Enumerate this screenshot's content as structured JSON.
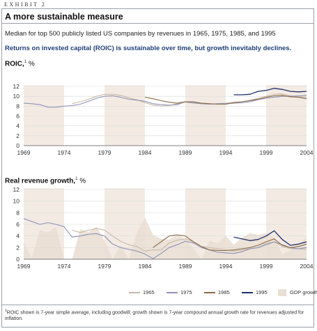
{
  "header": {
    "exhibit": "EXHIBIT 2",
    "title": "A more sustainable measure",
    "subtitle": "Median for top 500 publicly listed US companies by revenues in 1965, 1975, 1985, and 1995",
    "headline": "Returns on invested capital (ROIC) is sustainable over time, but growth inevitably declines."
  },
  "colors": {
    "s1965": "#c9b8a8",
    "s1975": "#8e92b8",
    "s1985": "#8a6a46",
    "s1995": "#1e2f6a",
    "gdp": "#eadfd3",
    "band": "#f3ebe3",
    "grid": "#d9d9d9"
  },
  "legend": {
    "items": [
      {
        "key": "s1965",
        "label": "1965",
        "kind": "line"
      },
      {
        "key": "s1975",
        "label": "1975",
        "kind": "line"
      },
      {
        "key": "s1985",
        "label": "1985",
        "kind": "line"
      },
      {
        "key": "s1995",
        "label": "1995",
        "kind": "line"
      },
      {
        "key": "gdp",
        "label": "GDP growth",
        "kind": "area"
      }
    ]
  },
  "footnote": {
    "mark": "1",
    "text": "ROIC shown is 7-year simple average, including goodwill; growth shown is 7-year compound annual growth rate for revenues adjusted for inflation."
  },
  "chart_data": [
    {
      "type": "line",
      "title": "ROIC,",
      "title_mark": "1",
      "unit": "%",
      "xlim": [
        1969,
        2004
      ],
      "ylim": [
        0,
        12
      ],
      "yticks": [
        0,
        2,
        4,
        6,
        8,
        10,
        12
      ],
      "xticks": [
        1969,
        1974,
        1979,
        1984,
        1989,
        1994,
        1999,
        2004
      ],
      "shaded_bands": [
        [
          1969,
          1974
        ],
        [
          1979,
          1984
        ],
        [
          1989,
          1994
        ],
        [
          1999,
          2004
        ]
      ],
      "series": [
        {
          "key": "s1965",
          "x": [
            1975,
            1976,
            1977,
            1978,
            1979,
            1980,
            1981,
            1982,
            1983,
            1984,
            1985,
            1986,
            1987,
            1988,
            1989,
            1990,
            1991,
            1992,
            1993,
            1994,
            1995,
            1996,
            1997,
            1998,
            1999,
            2000,
            2001,
            2002,
            2003,
            2004
          ],
          "y": [
            8.5,
            8.9,
            9.4,
            10.0,
            10.4,
            10.4,
            10.2,
            9.7,
            9.3,
            8.7,
            8.2,
            8.0,
            8.1,
            8.5,
            8.8,
            8.6,
            8.5,
            8.4,
            8.5,
            8.6,
            8.8,
            8.9,
            9.2,
            9.6,
            10.0,
            10.4,
            10.5,
            10.1,
            9.9,
            9.8
          ]
        },
        {
          "key": "s1975",
          "x": [
            1969,
            1970,
            1971,
            1972,
            1973,
            1974,
            1975,
            1976,
            1977,
            1978,
            1979,
            1980,
            1981,
            1982,
            1983,
            1984,
            1985,
            1986,
            1987,
            1988,
            1989,
            1990,
            1991,
            1992,
            1993,
            1994,
            1995,
            1996,
            1997,
            1998,
            1999,
            2000,
            2001,
            2002,
            2003,
            2004
          ],
          "y": [
            8.6,
            8.5,
            8.3,
            7.8,
            7.8,
            8.0,
            8.1,
            8.4,
            9.0,
            9.6,
            10.0,
            10.1,
            9.8,
            9.4,
            9.2,
            9.0,
            8.5,
            8.3,
            8.2,
            8.3,
            8.9,
            8.7,
            8.5,
            8.4,
            8.5,
            8.5,
            8.6,
            8.7,
            8.9,
            9.3,
            9.6,
            9.8,
            10.0,
            10.0,
            10.1,
            10.2
          ]
        },
        {
          "key": "s1985",
          "x": [
            1984,
            1985,
            1986,
            1987,
            1988,
            1989,
            1990,
            1991,
            1992,
            1993,
            1994,
            1995,
            1996,
            1997,
            1998,
            1999,
            2000,
            2001,
            2002,
            2003,
            2004
          ],
          "y": [
            9.8,
            9.5,
            9.1,
            8.8,
            8.6,
            8.9,
            8.9,
            8.6,
            8.5,
            8.4,
            8.4,
            8.7,
            8.9,
            9.1,
            9.4,
            9.8,
            10.1,
            10.2,
            9.9,
            9.8,
            9.5
          ]
        },
        {
          "key": "s1995",
          "x": [
            1995,
            1996,
            1997,
            1998,
            1999,
            2000,
            2001,
            2002,
            2003,
            2004
          ],
          "y": [
            10.3,
            10.3,
            10.4,
            11.0,
            11.2,
            11.6,
            11.4,
            11.0,
            10.9,
            11.0
          ]
        }
      ]
    },
    {
      "type": "line",
      "title": "Real revenue growth,",
      "title_mark": "1",
      "unit": "%",
      "xlim": [
        1969,
        2004
      ],
      "ylim": [
        0,
        12
      ],
      "yticks": [
        0,
        2,
        4,
        6,
        8,
        10,
        12
      ],
      "xticks": [
        1969,
        1974,
        1979,
        1984,
        1989,
        1994,
        1999,
        2004
      ],
      "shaded_bands": [
        [
          1969,
          1974
        ],
        [
          1979,
          1984
        ],
        [
          1989,
          1994
        ],
        [
          1999,
          2004
        ]
      ],
      "gdp_growth": {
        "key": "gdp",
        "x": [
          1969,
          1970,
          1971,
          1972,
          1973,
          1974,
          1975,
          1976,
          1977,
          1978,
          1979,
          1980,
          1981,
          1982,
          1983,
          1984,
          1985,
          1986,
          1987,
          1988,
          1989,
          1990,
          1991,
          1992,
          1993,
          1994,
          1995,
          1996,
          1997,
          1998,
          1999,
          2000,
          2001,
          2002,
          2003,
          2004
        ],
        "y": [
          3.0,
          0.2,
          5.0,
          4.6,
          5.6,
          0.0,
          0.0,
          5.2,
          4.6,
          5.6,
          3.2,
          0.0,
          2.5,
          0.0,
          4.6,
          7.2,
          4.2,
          3.5,
          3.4,
          4.2,
          3.5,
          1.9,
          0.0,
          3.3,
          2.7,
          4.0,
          2.5,
          3.7,
          4.5,
          4.2,
          4.5,
          3.7,
          0.8,
          1.6,
          2.5,
          3.9
        ]
      },
      "series": [
        {
          "key": "s1965",
          "x": [
            1975,
            1976,
            1977,
            1978,
            1979,
            1980,
            1981,
            1982,
            1983,
            1984,
            1985,
            1986,
            1987,
            1988,
            1989,
            1990,
            1991,
            1992,
            1993,
            1994,
            1995,
            1996,
            1997,
            1998,
            1999,
            2000,
            2001,
            2002,
            2003,
            2004
          ],
          "y": [
            5.0,
            4.6,
            5.0,
            5.3,
            5.0,
            4.0,
            3.1,
            2.5,
            2.2,
            1.4,
            1.6,
            1.6,
            2.8,
            3.3,
            3.5,
            3.0,
            2.2,
            2.0,
            1.8,
            1.6,
            1.4,
            1.6,
            1.8,
            2.0,
            2.7,
            3.0,
            2.2,
            1.8,
            1.8,
            1.7
          ]
        },
        {
          "key": "s1975",
          "x": [
            1969,
            1970,
            1971,
            1972,
            1973,
            1974,
            1975,
            1976,
            1977,
            1978,
            1979,
            1980,
            1981,
            1982,
            1983,
            1984,
            1985,
            1986,
            1987,
            1988,
            1989,
            1990,
            1991,
            1992,
            1993,
            1994,
            1995,
            1996,
            1997,
            1998,
            1999,
            2000,
            2001,
            2002,
            2003,
            2004
          ],
          "y": [
            7.0,
            6.5,
            6.0,
            6.3,
            6.0,
            5.6,
            3.8,
            4.0,
            4.3,
            4.4,
            4.0,
            2.6,
            2.0,
            1.7,
            1.4,
            0.9,
            0.1,
            1.0,
            2.0,
            2.5,
            3.1,
            2.8,
            2.0,
            1.6,
            1.2,
            1.1,
            1.0,
            1.3,
            1.8,
            2.0,
            2.5,
            3.0,
            2.5,
            2.0,
            1.8,
            2.0
          ]
        },
        {
          "key": "s1985",
          "x": [
            1985,
            1986,
            1987,
            1988,
            1989,
            1990,
            1991,
            1992,
            1993,
            1994,
            1995,
            1996,
            1997,
            1998,
            1999,
            2000,
            2001,
            2002,
            2003,
            2004
          ],
          "y": [
            2.0,
            3.0,
            4.0,
            4.2,
            4.0,
            3.0,
            2.2,
            1.6,
            1.5,
            1.5,
            1.6,
            1.8,
            2.0,
            2.4,
            3.0,
            3.5,
            2.4,
            2.0,
            2.2,
            2.6
          ]
        },
        {
          "key": "s1995",
          "x": [
            1995,
            1996,
            1997,
            1998,
            1999,
            2000,
            2001,
            2002,
            2003,
            2004
          ],
          "y": [
            3.8,
            3.5,
            3.2,
            3.4,
            4.0,
            4.9,
            3.4,
            2.4,
            2.6,
            3.0
          ]
        }
      ]
    }
  ]
}
